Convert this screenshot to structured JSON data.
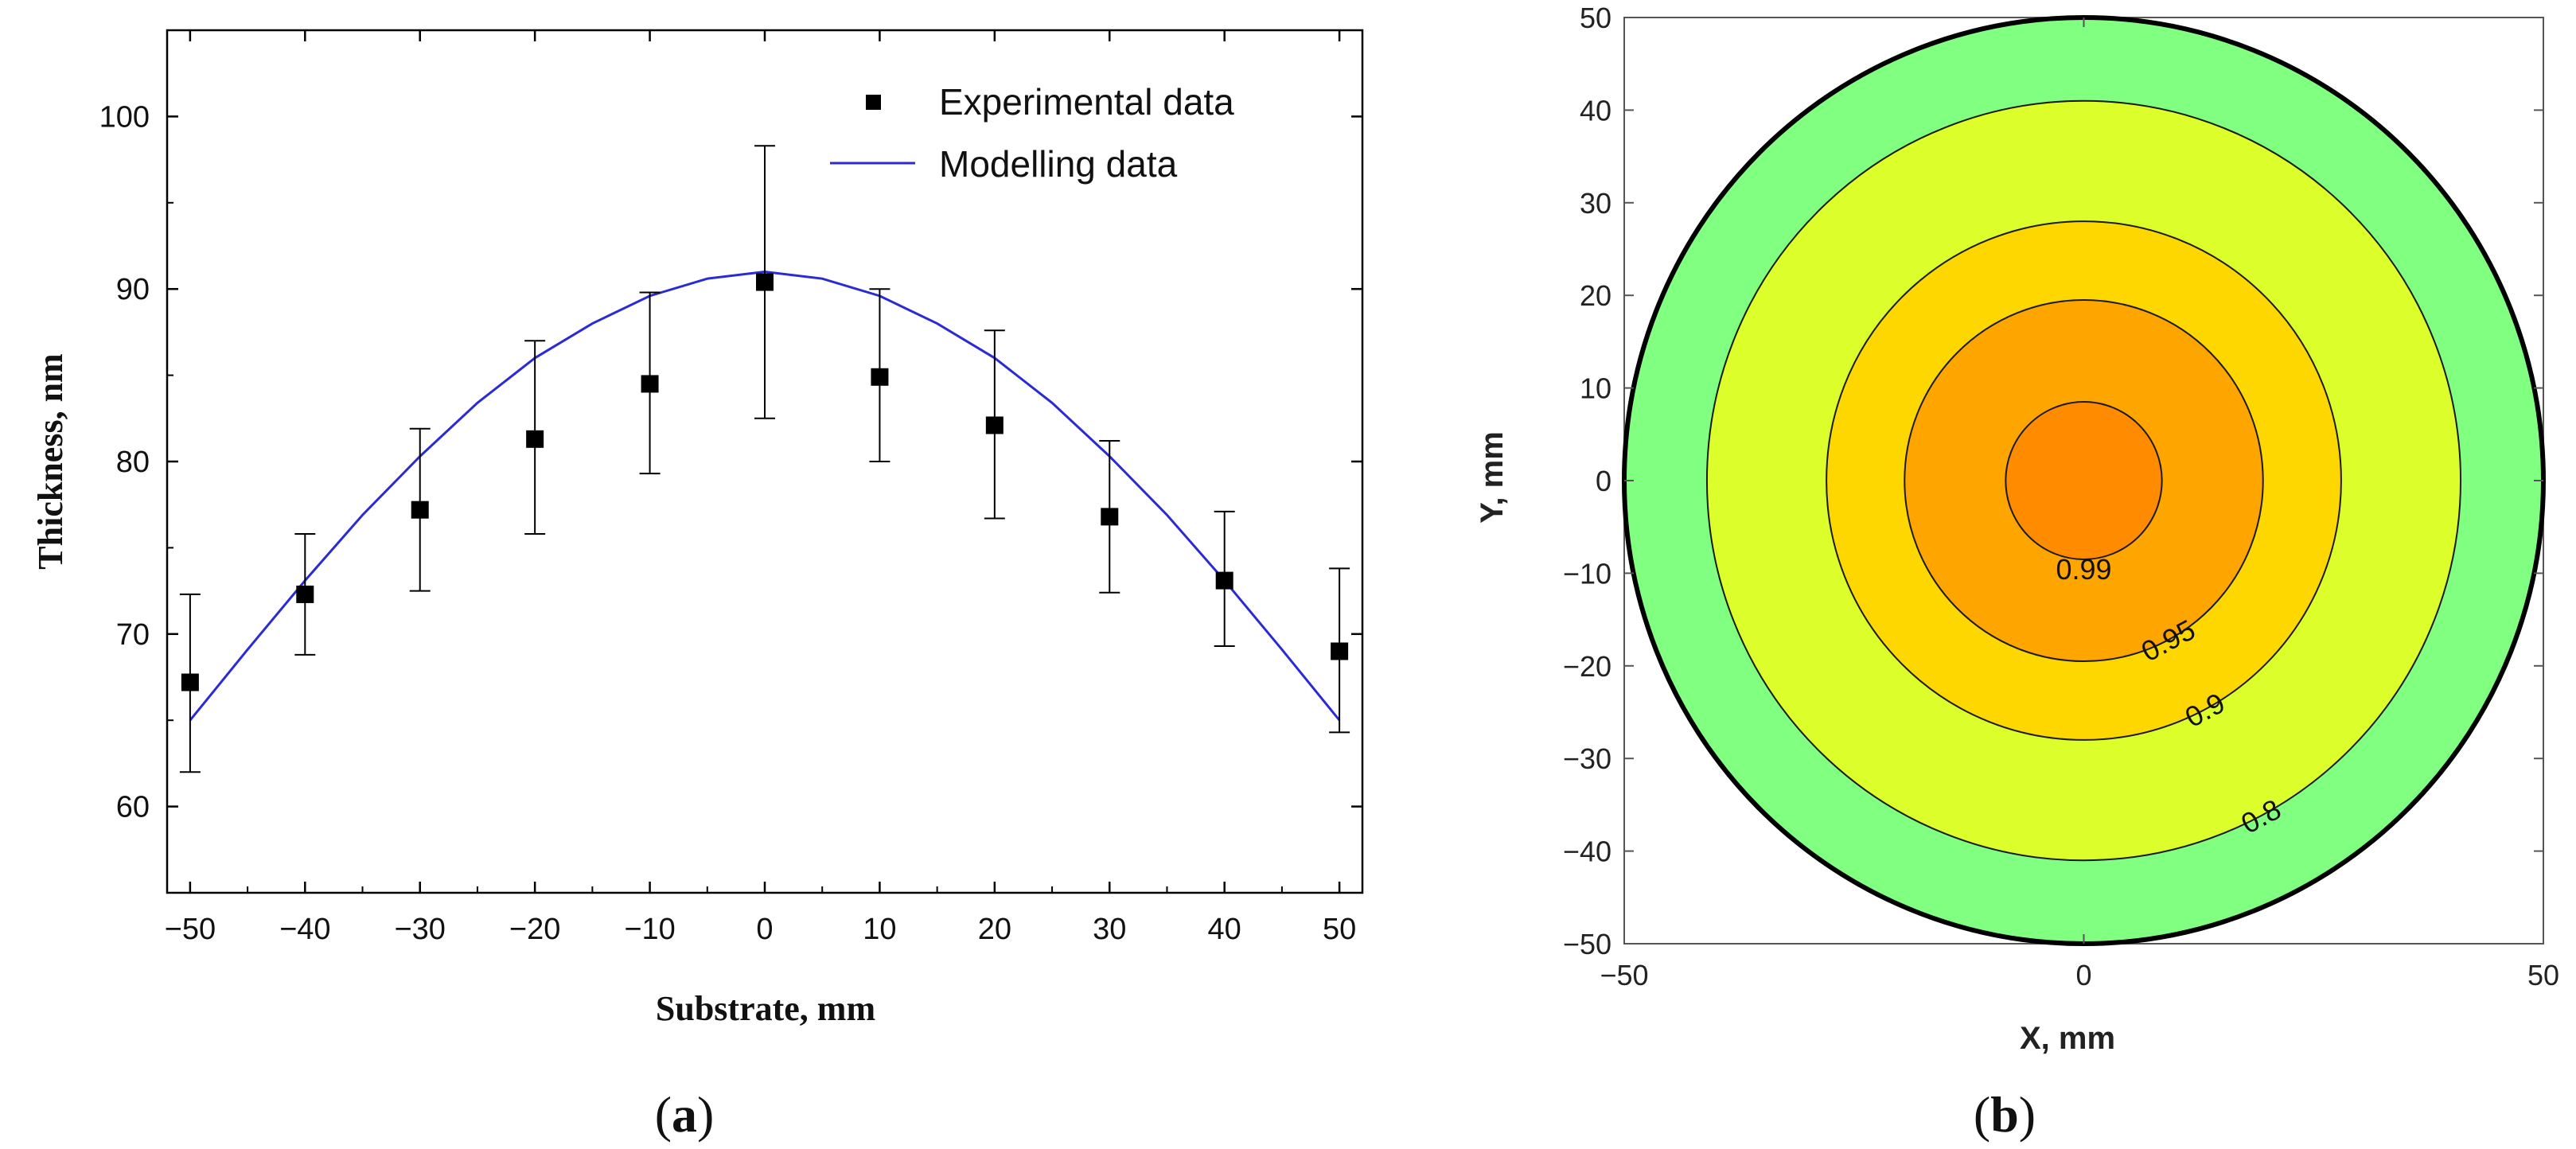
{
  "colors": {
    "marker": "#000000",
    "model_line": "#2b2bd6",
    "band_080": "#80ff80",
    "band_090": "#dcff2b",
    "band_095": "#ffd700",
    "band_099": "#ffa500",
    "band_100": "#ff8c00"
  },
  "chart_data": [
    {
      "type": "scatter",
      "panel": "(a)",
      "panel_letter": "a",
      "xlabel": "Substrate, mm",
      "ylabel": "Thickness, nm",
      "xlim": [
        -52,
        52
      ],
      "ylim": [
        55,
        105
      ],
      "x_ticks": [
        -50,
        -40,
        -30,
        -20,
        -10,
        0,
        10,
        20,
        30,
        40,
        50
      ],
      "x_tick_labels": [
        "−50",
        "−40",
        "−30",
        "−20",
        "−10",
        "0",
        "10",
        "20",
        "30",
        "40",
        "50"
      ],
      "y_ticks": [
        60,
        70,
        80,
        90,
        100
      ],
      "y_tick_labels": [
        "60",
        "70",
        "80",
        "90",
        "100"
      ],
      "series": [
        {
          "name": "Experimental data",
          "kind": "points_with_error",
          "x": [
            -50,
            -40,
            -30,
            -20,
            -10,
            0,
            10,
            20,
            30,
            40,
            50
          ],
          "y": [
            67.2,
            72.3,
            77.2,
            81.3,
            84.5,
            90.4,
            84.9,
            82.1,
            76.8,
            73.1,
            69.0
          ],
          "y_low": [
            62.0,
            68.8,
            72.5,
            75.8,
            79.3,
            82.5,
            80.0,
            76.7,
            72.4,
            69.3,
            64.3
          ],
          "y_high": [
            72.3,
            75.8,
            81.9,
            87.0,
            89.8,
            98.3,
            90.0,
            87.6,
            81.2,
            77.1,
            73.8
          ]
        },
        {
          "name": "Modelling data",
          "kind": "line",
          "x": [
            -50,
            -45,
            -40,
            -35,
            -30,
            -25,
            -20,
            -15,
            -10,
            -5,
            0,
            5,
            10,
            15,
            20,
            25,
            30,
            35,
            40,
            45,
            50
          ],
          "y": [
            65.0,
            69.1,
            73.1,
            76.9,
            80.3,
            83.4,
            86.0,
            88.0,
            89.6,
            90.6,
            91.0,
            90.6,
            89.6,
            88.0,
            86.0,
            83.4,
            80.3,
            76.9,
            73.1,
            69.1,
            65.0
          ]
        }
      ],
      "legend": {
        "placement": "top-right",
        "entries": [
          "Experimental data",
          "Modelling data"
        ]
      }
    },
    {
      "type": "contour",
      "panel": "(b)",
      "panel_letter": "b",
      "xlabel": "X, mm",
      "ylabel": "Y, mm",
      "xlim": [
        -50,
        50
      ],
      "ylim": [
        -50,
        50
      ],
      "x_ticks": [
        -50,
        0,
        50
      ],
      "x_tick_labels": [
        "−50",
        "0",
        "50"
      ],
      "y_ticks": [
        50,
        40,
        30,
        20,
        10,
        0,
        -10,
        -20,
        -30,
        -40,
        -50
      ],
      "y_tick_labels": [
        "50",
        "40",
        "30",
        "20",
        "10",
        "0",
        "−10",
        "−20",
        "−30",
        "−40",
        "−50"
      ],
      "substrate_radius": 50,
      "contour_levels": [
        {
          "level": "0.8",
          "radius": 41,
          "fill_key": "band_090",
          "label_angle": -62
        },
        {
          "level": "0.9",
          "radius": 28,
          "fill_key": "band_095",
          "label_angle": -62
        },
        {
          "level": "0.95",
          "radius": 19.5,
          "fill_key": "band_099",
          "label_angle": -62
        },
        {
          "level": "0.99",
          "radius": 8.5,
          "fill_key": "band_100",
          "label_angle": -90
        }
      ],
      "outer_fill_key": "band_080"
    }
  ]
}
